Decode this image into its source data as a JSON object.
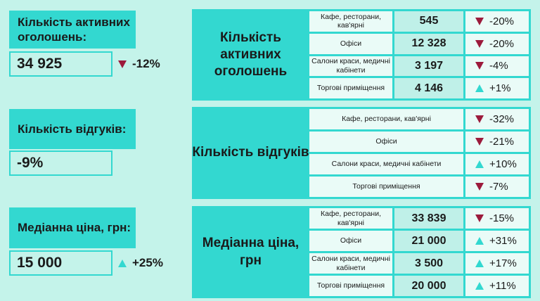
{
  "left": {
    "listings": {
      "label": "Кількість активних оголошень:",
      "value": "34 925",
      "change": "-12%",
      "trend": "down"
    },
    "responses": {
      "label": "Кількість відгуків:",
      "value": "-9%"
    },
    "price": {
      "label": "Медіанна ціна, грн:",
      "value": "15 000",
      "change": "+25%",
      "trend": "up"
    }
  },
  "panels": {
    "listings": {
      "title": "Кількість активних оголошень",
      "rows": [
        {
          "label": "Кафе, ресторани, кав'ярні",
          "value": "545",
          "change": "-20%",
          "trend": "down"
        },
        {
          "label": "Офіси",
          "value": "12 328",
          "change": "-20%",
          "trend": "down"
        },
        {
          "label": "Салони краси, медичні кабінети",
          "value": "3 197",
          "change": "-4%",
          "trend": "down"
        },
        {
          "label": "Торгові приміщення",
          "value": "4 146",
          "change": "+1%",
          "trend": "up"
        }
      ]
    },
    "responses": {
      "title": "Кількість відгуків",
      "rows": [
        {
          "label": "Кафе, ресторани, кав'ярні",
          "change": "-32%",
          "trend": "down"
        },
        {
          "label": "Офіси",
          "change": "-21%",
          "trend": "down"
        },
        {
          "label": "Салони краси, медичні кабінети",
          "change": "+10%",
          "trend": "up"
        },
        {
          "label": "Торгові приміщення",
          "change": "-7%",
          "trend": "down"
        }
      ]
    },
    "price": {
      "title": "Медіанна ціна, грн",
      "rows": [
        {
          "label": "Кафе, ресторани, кав'ярні",
          "value": "33 839",
          "change": "-15%",
          "trend": "down"
        },
        {
          "label": "Офіси",
          "value": "21 000",
          "change": "+31%",
          "trend": "up"
        },
        {
          "label": "Салони краси, медичні кабінети",
          "value": "3 500",
          "change": "+17%",
          "trend": "up"
        },
        {
          "label": "Торгові приміщення",
          "value": "20 000",
          "change": "+11%",
          "trend": "up"
        }
      ]
    }
  },
  "colors": {
    "teal": "#33d8d0",
    "down": "#9c1b3c",
    "background": "#c4f3ea"
  }
}
